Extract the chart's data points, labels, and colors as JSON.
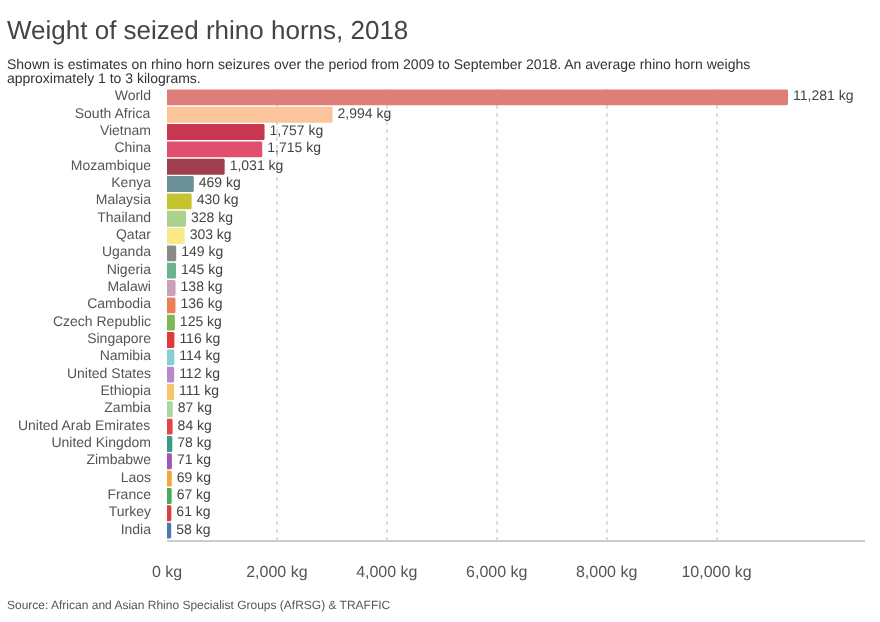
{
  "chart_data": {
    "type": "bar",
    "orientation": "horizontal",
    "title": "Weight of seized rhino horns, 2018",
    "subtitle": "Shown is estimates on rhino horn seizures over the period from 2009 to September 2018. An average rhino horn weighs approximately 1 to 3 kilograms.",
    "annotations": [
      "Source: African and Asian Rhino Specialist Groups (AfRSG) & TRAFFIC"
    ],
    "categories": [
      "World",
      "South Africa",
      "Vietnam",
      "China",
      "Mozambique",
      "Kenya",
      "Malaysia",
      "Thailand",
      "Qatar",
      "Uganda",
      "Nigeria",
      "Malawi",
      "Cambodia",
      "Czech Republic",
      "Singapore",
      "Namibia",
      "United States",
      "Ethiopia",
      "Zambia",
      "United Arab Emirates",
      "United Kingdom",
      "Zimbabwe",
      "Laos",
      "France",
      "Turkey",
      "India"
    ],
    "values": [
      11281,
      2994,
      1757,
      1715,
      1031,
      469,
      430,
      328,
      303,
      149,
      145,
      138,
      136,
      125,
      116,
      114,
      112,
      111,
      87,
      84,
      78,
      71,
      69,
      67,
      61,
      58
    ],
    "value_labels": [
      "11,281 kg",
      "2,994 kg",
      "1,757 kg",
      "1,715 kg",
      "1,031 kg",
      "469 kg",
      "430 kg",
      "328 kg",
      "303 kg",
      "149 kg",
      "145 kg",
      "138 kg",
      "136 kg",
      "125 kg",
      "116 kg",
      "114 kg",
      "112 kg",
      "111 kg",
      "87 kg",
      "84 kg",
      "78 kg",
      "71 kg",
      "69 kg",
      "67 kg",
      "61 kg",
      "58 kg"
    ],
    "colors": [
      "#dd7f78",
      "#fcc49a",
      "#c8374f",
      "#e0506e",
      "#a0404f",
      "#6b8f96",
      "#c6c42e",
      "#a8d28e",
      "#fae98a",
      "#8a8a8a",
      "#6fb28f",
      "#c9a0b8",
      "#e8805a",
      "#7cb858",
      "#e03a3a",
      "#86cfd2",
      "#b88ac8",
      "#f7c46a",
      "#a8d8a0",
      "#e04848",
      "#3a9a8a",
      "#9b59b6",
      "#f0a840",
      "#4aaa5a",
      "#d84040",
      "#4a7ab0"
    ],
    "xticks": [
      {
        "value": 0,
        "label": "0 kg"
      },
      {
        "value": 2000,
        "label": "2,000 kg"
      },
      {
        "value": 4000,
        "label": "4,000 kg"
      },
      {
        "value": 6000,
        "label": "6,000 kg"
      },
      {
        "value": 8000,
        "label": "8,000 kg"
      },
      {
        "value": 10000,
        "label": "10,000 kg"
      }
    ],
    "xlim": [
      0,
      12700
    ],
    "grid": "x"
  }
}
